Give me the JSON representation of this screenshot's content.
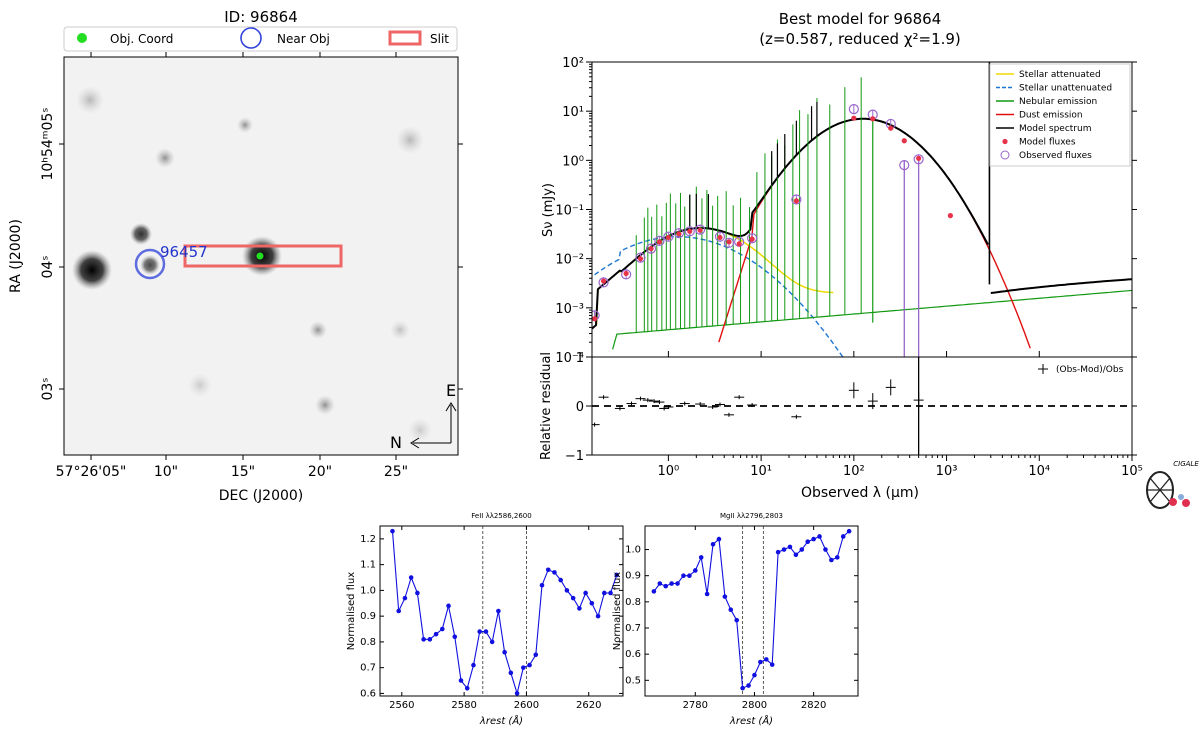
{
  "chart_data": [
    {
      "type": "image",
      "title": "ID: 96864",
      "xlabel": "DEC (J2000)",
      "ylabel": "RA (J2000)",
      "x_ticks": [
        "57°26'05\"",
        "10\"",
        "15\"",
        "20\"",
        "25\""
      ],
      "y_ticks": [
        "10ʰ54ᵐ05ˢ",
        "04ˢ",
        "03ˢ"
      ],
      "legend": [
        "Obj. Coord",
        "Near Obj",
        "Slit"
      ],
      "near_object_label": "96457",
      "compass": {
        "north": "N",
        "east": "E"
      }
    },
    {
      "type": "line",
      "title": "Best model for 96864",
      "subtitle": "(z=0.587, reduced χ²=1.9)",
      "xlabel": "Observed λ (μm)",
      "ylabel": "Sν (mJy)",
      "xscale": "log",
      "yscale": "log",
      "xlim": [
        0.15,
        100000
      ],
      "ylim": [
        0.0001,
        100
      ],
      "x_tick_labels": [
        "10⁰",
        "10¹",
        "10²",
        "10³",
        "10⁴",
        "10⁵"
      ],
      "y_tick_labels": [
        "10⁻⁴",
        "10⁻³",
        "10⁻²",
        "10⁻¹",
        "10⁰",
        "10¹",
        "10²"
      ],
      "legend": [
        "Stellar attenuated",
        "Stellar unattenuated",
        "Nebular emission",
        "Dust emission",
        "Model spectrum",
        "Model fluxes",
        "Observed fluxes"
      ],
      "colors": {
        "stellar_att": "#f0d800",
        "stellar_unatt": "#1f77d4",
        "nebular": "#119911",
        "dust": "#e01010",
        "model": "#000000",
        "model_flux": "#e8324a",
        "obs_flux": "#9966cc"
      },
      "model_fluxes": [
        [
          0.16,
          0.0006
        ],
        [
          0.2,
          0.0035
        ],
        [
          0.35,
          0.005
        ],
        [
          0.5,
          0.01
        ],
        [
          0.65,
          0.016
        ],
        [
          0.8,
          0.022
        ],
        [
          1.0,
          0.027
        ],
        [
          1.3,
          0.032
        ],
        [
          1.7,
          0.036
        ],
        [
          2.2,
          0.038
        ],
        [
          3.6,
          0.027
        ],
        [
          4.5,
          0.022
        ],
        [
          5.8,
          0.02
        ],
        [
          8.0,
          0.025
        ],
        [
          24,
          0.15
        ],
        [
          100,
          7.2
        ],
        [
          160,
          7.0
        ],
        [
          250,
          4.5
        ],
        [
          350,
          2.5
        ],
        [
          500,
          1.1
        ],
        [
          1100,
          0.075
        ]
      ],
      "observed_fluxes": [
        [
          0.16,
          0.0007
        ],
        [
          0.2,
          0.0033
        ],
        [
          0.35,
          0.0048
        ],
        [
          0.5,
          0.0105
        ],
        [
          0.65,
          0.016
        ],
        [
          0.8,
          0.023
        ],
        [
          1.0,
          0.028
        ],
        [
          1.3,
          0.033
        ],
        [
          1.7,
          0.036
        ],
        [
          2.2,
          0.039
        ],
        [
          3.6,
          0.028
        ],
        [
          4.5,
          0.021
        ],
        [
          5.8,
          0.022
        ],
        [
          8.0,
          0.026
        ],
        [
          24,
          0.16
        ],
        [
          100,
          11
        ],
        [
          160,
          8.5
        ],
        [
          250,
          5.5
        ],
        [
          350,
          0.8
        ],
        [
          500,
          1.05
        ]
      ]
    },
    {
      "type": "scatter",
      "ylabel": "Relative residual",
      "xlabel": "Observed λ (μm)",
      "ylim": [
        -1,
        1
      ],
      "y_tick_labels": [
        "−1",
        "0",
        "1"
      ],
      "legend": [
        "(Obs-Mod)/Obs"
      ],
      "residuals": [
        [
          0.16,
          -0.38
        ],
        [
          0.2,
          0.18
        ],
        [
          0.3,
          -0.05
        ],
        [
          0.4,
          0.05
        ],
        [
          0.5,
          0.15
        ],
        [
          0.6,
          0.12
        ],
        [
          0.7,
          0.1
        ],
        [
          0.8,
          0.08
        ],
        [
          0.9,
          -0.05
        ],
        [
          1.0,
          -0.02
        ],
        [
          1.5,
          0.05
        ],
        [
          2.2,
          0.04
        ],
        [
          3.0,
          -0.02
        ],
        [
          3.6,
          0.03
        ],
        [
          4.5,
          -0.18
        ],
        [
          5.8,
          0.18
        ],
        [
          8.0,
          0.02
        ],
        [
          24,
          -0.22
        ],
        [
          100,
          0.32
        ],
        [
          160,
          0.1
        ],
        [
          250,
          0.38
        ],
        [
          500,
          0.12
        ]
      ]
    },
    {
      "type": "line",
      "title": "FeII λλ2586,2600",
      "xlabel": "λrest (Å)",
      "ylabel": "Normalised flux",
      "xlim": [
        2553,
        2631
      ],
      "ylim": [
        0.59,
        1.25
      ],
      "x_ticks": [
        2560,
        2580,
        2600,
        2620
      ],
      "y_ticks": [
        0.6,
        0.7,
        0.8,
        0.9,
        1.0,
        1.1,
        1.2
      ],
      "vlines": [
        2586,
        2600
      ],
      "x": [
        2557,
        2559,
        2561,
        2563,
        2565,
        2567,
        2569,
        2571,
        2573,
        2575,
        2577,
        2579,
        2581,
        2583,
        2585,
        2587,
        2589,
        2591,
        2593,
        2595,
        2597,
        2599,
        2601,
        2603,
        2605,
        2607,
        2609,
        2611,
        2613,
        2615,
        2617,
        2619,
        2621,
        2623,
        2625,
        2627,
        2629
      ],
      "y": [
        1.23,
        0.92,
        0.97,
        1.05,
        0.99,
        0.81,
        0.81,
        0.83,
        0.85,
        0.94,
        0.82,
        0.65,
        0.62,
        0.71,
        0.84,
        0.84,
        0.8,
        0.92,
        0.76,
        0.68,
        0.6,
        0.7,
        0.71,
        0.75,
        1.02,
        1.08,
        1.07,
        1.04,
        1.0,
        0.97,
        0.93,
        0.99,
        0.95,
        0.9,
        0.99,
        0.99,
        1.06
      ]
    },
    {
      "type": "line",
      "title": "MgII λλ2796,2803",
      "xlabel": "λrest (Å)",
      "ylabel": "Normalised flux",
      "xlim": [
        2763,
        2835
      ],
      "ylim": [
        0.44,
        1.09
      ],
      "x_ticks": [
        2780,
        2800,
        2820
      ],
      "y_ticks": [
        0.5,
        0.6,
        0.7,
        0.8,
        0.9,
        1.0
      ],
      "vlines": [
        2796,
        2803
      ],
      "x": [
        2766,
        2768,
        2770,
        2772,
        2774,
        2776,
        2778,
        2780,
        2782,
        2784,
        2786,
        2788,
        2790,
        2792,
        2794,
        2796,
        2798,
        2800,
        2802,
        2804,
        2806,
        2808,
        2810,
        2812,
        2814,
        2816,
        2818,
        2820,
        2822,
        2824,
        2826,
        2828,
        2830,
        2832
      ],
      "y": [
        0.84,
        0.87,
        0.86,
        0.87,
        0.87,
        0.9,
        0.9,
        0.92,
        0.97,
        0.83,
        1.02,
        1.04,
        0.82,
        0.77,
        0.73,
        0.47,
        0.48,
        0.52,
        0.57,
        0.58,
        0.56,
        0.99,
        1.0,
        1.01,
        0.98,
        1.0,
        1.03,
        1.04,
        1.05,
        1.0,
        0.96,
        0.97,
        1.05,
        1.07
      ]
    }
  ],
  "logo": {
    "text": "CIGALE"
  }
}
